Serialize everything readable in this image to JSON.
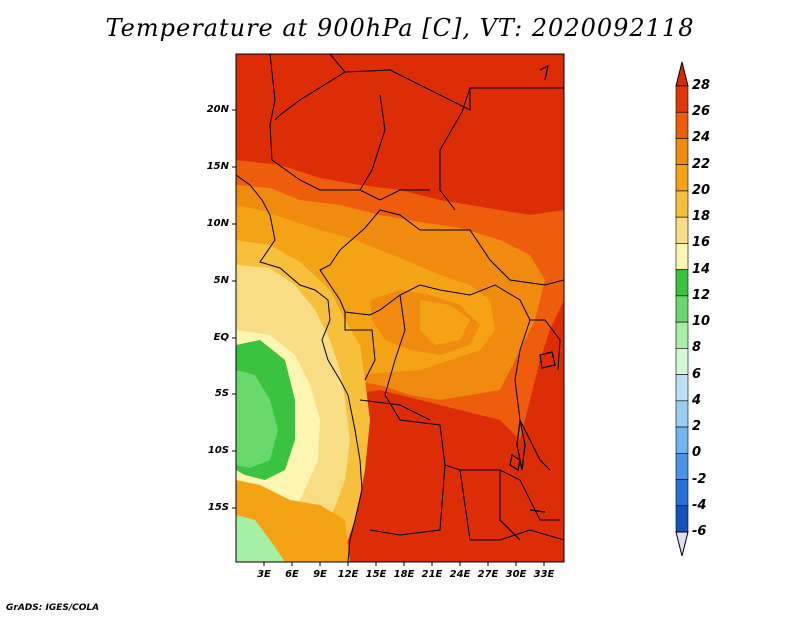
{
  "title": "Temperature at 900hPa [C], VT: 2020092118",
  "credit": "GrADS: IGES/COLA",
  "map": {
    "lat_labels": [
      "20N",
      "15N",
      "10N",
      "5N",
      "EQ",
      "5S",
      "10S",
      "15S"
    ],
    "lon_labels": [
      "3E",
      "6E",
      "9E",
      "12E",
      "15E",
      "18E",
      "21E",
      "24E",
      "27E",
      "30E",
      "33E"
    ]
  },
  "colorbar": {
    "levels": [
      "28",
      "26",
      "24",
      "22",
      "20",
      "18",
      "16",
      "14",
      "12",
      "10",
      "8",
      "6",
      "4",
      "2",
      "0",
      "-2",
      "-4",
      "-6"
    ],
    "colors": [
      "#d62a06",
      "#e33608",
      "#ed5d0c",
      "#f08b0f",
      "#f4a314",
      "#f6bf3c",
      "#f9dd84",
      "#fcf6b2",
      "#39c33e",
      "#6ad96d",
      "#a6f0a6",
      "#d4f7d4",
      "#bce0f6",
      "#97cef3",
      "#6fb5ee",
      "#4795e7",
      "#2571d8",
      "#1353be",
      "#0a36a2",
      "#06127a",
      "#e2dcf7"
    ],
    "top_arrow_color": "#d62a06",
    "bottom_arrow_color": "#e2dcf7"
  }
}
